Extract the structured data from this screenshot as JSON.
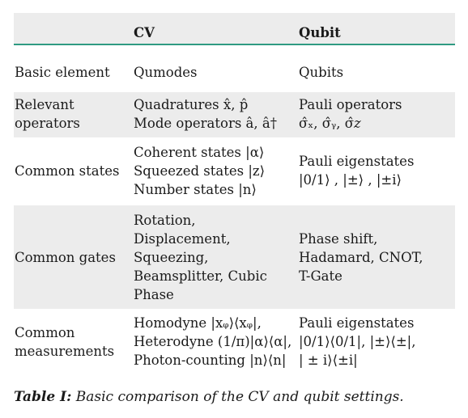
{
  "table": {
    "header": [
      "",
      "CV",
      "Qubit"
    ],
    "rows": [
      {
        "label": [
          "Basic element"
        ],
        "cv": [
          "Qumodes"
        ],
        "qubit": [
          "Qubits"
        ]
      },
      {
        "label": [
          "Relevant",
          "operators"
        ],
        "cv": [
          "Quadratures x̂, p̂",
          "Mode operators â, â†"
        ],
        "qubit": [
          "Pauli operators",
          "σ̂ₓ, σ̂ᵧ, σ̂𝑧"
        ]
      },
      {
        "label": [
          "Common states"
        ],
        "cv": [
          "Coherent states |α⟩",
          "Squeezed states |z⟩",
          "Number states |n⟩"
        ],
        "qubit": [
          "Pauli eigenstates",
          "|0/1⟩ , |±⟩ , |±i⟩"
        ]
      },
      {
        "label": [
          "Common gates"
        ],
        "cv": [
          "Rotation,",
          "Displacement,",
          "Squeezing,",
          "Beamsplitter, Cubic",
          "Phase"
        ],
        "qubit": [
          "Phase shift,",
          "Hadamard, CNOT,",
          "T-Gate"
        ]
      },
      {
        "label": [
          "Common",
          "measurements"
        ],
        "cv": [
          "Homodyne |xᵩ⟩⟨xᵩ|,",
          "Heterodyne (1/π)|α⟩⟨α|,",
          "Photon-counting |n⟩⟨n|"
        ],
        "qubit": [
          "Pauli eigenstates",
          "|0/1⟩⟨0/1|, |±⟩⟨±|,",
          "| ± i⟩⟨±i|"
        ]
      }
    ]
  },
  "caption": {
    "label": "Table I:",
    "text": "Basic comparison of the CV and qubit settings."
  }
}
